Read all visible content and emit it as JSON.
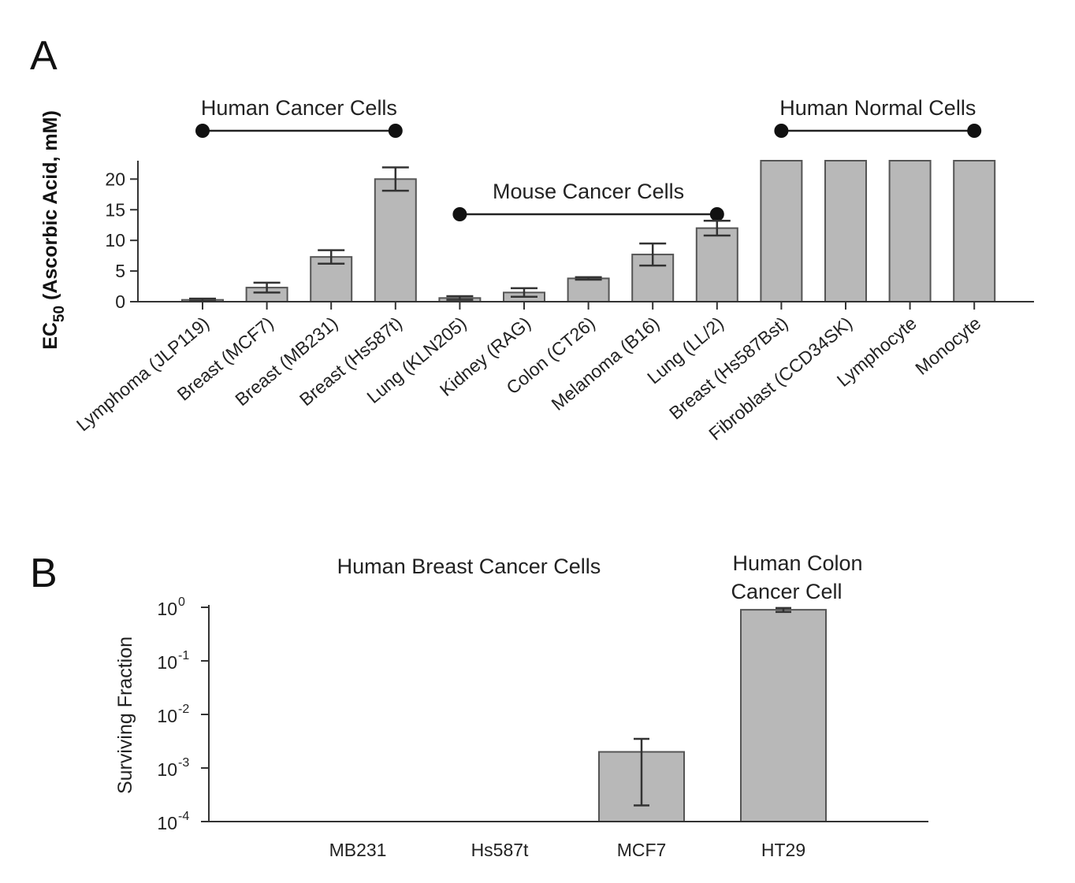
{
  "chart_data": [
    {
      "panel": "A",
      "type": "bar",
      "ylabel_main": "EC",
      "ylabel_sub": "50",
      "ylabel_rest": " (Ascorbic Acid, mM)",
      "ylim": [
        0,
        23
      ],
      "yticks": [
        "0",
        "5",
        "10",
        "15",
        "20"
      ],
      "categories": [
        "Lymphoma (JLP119)",
        "Breast (MCF7)",
        "Breast (MB231)",
        "Breast (Hs587t)",
        "Lung (KLN205)",
        "Kidney (RAG)",
        "Colon (CT26)",
        "Melanoma (B16)",
        "Lung (LL/2)",
        "Breast (Hs587Bst)",
        "Fibroblast (CCD34SK)",
        "Lymphocyte",
        "Monocyte"
      ],
      "values": [
        0.3,
        2.3,
        7.3,
        20.0,
        0.6,
        1.5,
        3.8,
        7.7,
        12.0,
        23,
        23,
        23,
        23
      ],
      "errors": [
        0.2,
        0.8,
        1.1,
        1.9,
        0.3,
        0.7,
        0.2,
        1.8,
        1.2,
        null,
        null,
        null,
        null
      ],
      "groups": [
        {
          "label": "Human Cancer Cells",
          "from": 0,
          "to": 3
        },
        {
          "label": "Mouse Cancer Cells",
          "from": 4,
          "to": 8
        },
        {
          "label": "Human Normal Cells",
          "from": 9,
          "to": 12
        }
      ],
      "grid": false
    },
    {
      "panel": "B",
      "type": "bar",
      "title": "Human Breast Cancer Cells",
      "annotation_line1": "Human Colon",
      "annotation_line2": "Cancer Cell",
      "ylabel": "Surviving Fraction",
      "yscale": "log",
      "ylim": [
        0.0001,
        1
      ],
      "yticks": [
        "10",
        "10",
        "10",
        "10",
        "10"
      ],
      "ytick_exponents": [
        "-4",
        "-3",
        "-2",
        "-1",
        "0"
      ],
      "categories": [
        "MB231",
        "Hs587t",
        "MCF7",
        "HT29"
      ],
      "values": [
        null,
        null,
        0.002,
        0.9
      ],
      "error_low": [
        null,
        null,
        0.0002,
        0.82
      ],
      "error_high": [
        null,
        null,
        0.0035,
        0.97
      ],
      "grid": false
    }
  ]
}
